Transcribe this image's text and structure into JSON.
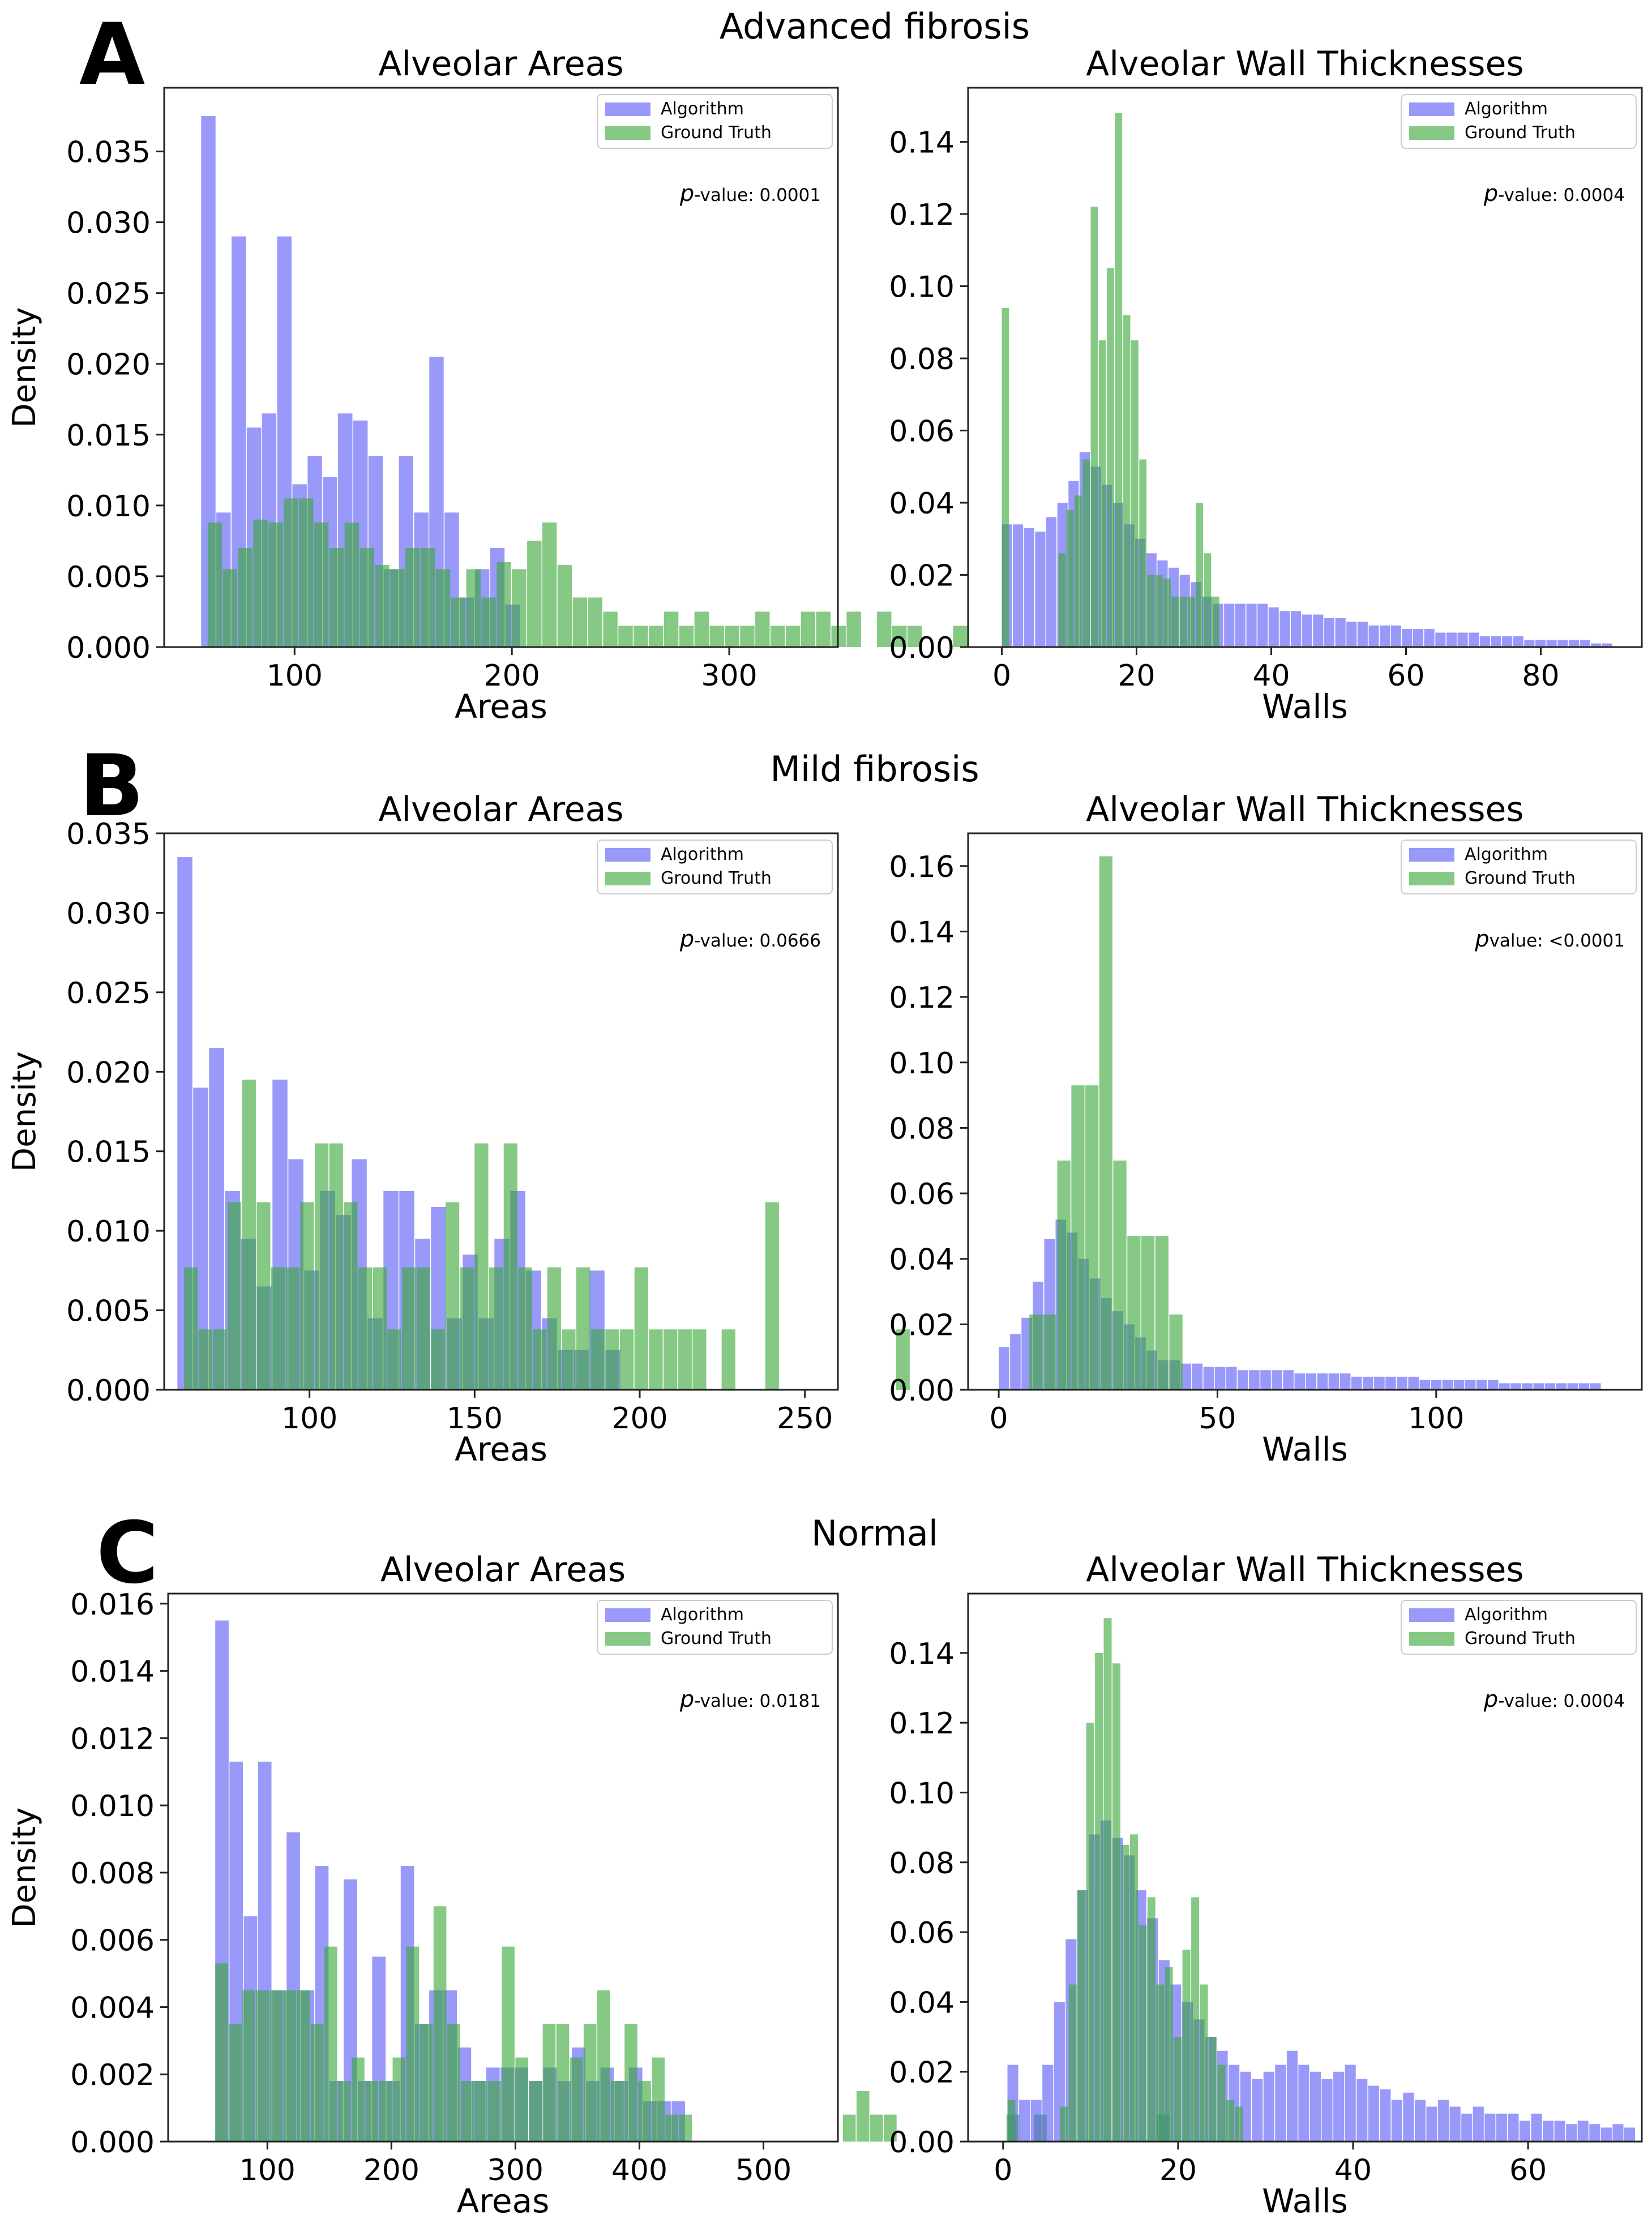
{
  "figure": {
    "panels": [
      {
        "letter": "A",
        "title": "Advanced fibrosis"
      },
      {
        "letter": "B",
        "title": "Mild fibrosis"
      },
      {
        "letter": "C",
        "title": "Normal"
      }
    ]
  },
  "colors": {
    "algorithm": "#5a5af5",
    "ground_truth": "#3aa83a",
    "axis": "#222222"
  },
  "chart_data": [
    {
      "id": "A-areas",
      "type": "histogram",
      "title": "Alveolar Areas",
      "xlabel": "Areas",
      "ylabel": "Density",
      "xlim": [
        40,
        350
      ],
      "ylim": [
        0,
        0.0395
      ],
      "xticks": [
        {
          "v": 100,
          "t": "100"
        },
        {
          "v": 200,
          "t": "200"
        },
        {
          "v": 300,
          "t": "300"
        }
      ],
      "yticks": [
        {
          "v": 0,
          "t": "0.000"
        },
        {
          "v": 0.005,
          "t": "0.005"
        },
        {
          "v": 0.01,
          "t": "0.010"
        },
        {
          "v": 0.015,
          "t": "0.015"
        },
        {
          "v": 0.02,
          "t": "0.020"
        },
        {
          "v": 0.025,
          "t": "0.025"
        },
        {
          "v": 0.03,
          "t": "0.030"
        },
        {
          "v": 0.035,
          "t": "0.035"
        }
      ],
      "legend": [
        "Algorithm",
        "Ground Truth"
      ],
      "annotation": {
        "p": "p",
        "text": "-value: 0.0001"
      },
      "series": [
        {
          "name": "Algorithm",
          "start": 57,
          "width": 7,
          "values": [
            0.0375,
            0.0095,
            0.029,
            0.0155,
            0.0165,
            0.029,
            0.0115,
            0.0135,
            0.012,
            0.0165,
            0.016,
            0.0135,
            0.0055,
            0.0135,
            0.0095,
            0.0205,
            0.0095,
            0.0035,
            0.0055,
            0.007,
            0.003
          ]
        },
        {
          "name": "Ground Truth",
          "start": 60,
          "width": 7,
          "values": [
            0.0088,
            0.0055,
            0.007,
            0.009,
            0.0088,
            0.0105,
            0.0105,
            0.0088,
            0.007,
            0.0088,
            0.007,
            0.0058,
            0.0055,
            0.007,
            0.007,
            0.0055,
            0.0035,
            0.0055,
            0.0035,
            0.006,
            0.0055,
            0.0075,
            0.0088,
            0.0058,
            0.0035,
            0.0035,
            0.0025,
            0.0015,
            0.0015,
            0.0015,
            0.0025,
            0.0015,
            0.0025,
            0.0015,
            0.0015,
            0.0015,
            0.0025,
            0.0015,
            0.0015,
            0.0025,
            0.0025,
            0.0015,
            0.0025,
            0,
            0.0025,
            0.0015,
            0.0015,
            0,
            0,
            0.0015
          ]
        }
      ]
    },
    {
      "id": "A-walls",
      "type": "histogram",
      "title": "Alveolar Wall Thicknesses",
      "xlabel": "Walls",
      "ylabel": "",
      "xlim": [
        -5,
        95
      ],
      "ylim": [
        0,
        0.155
      ],
      "xticks": [
        {
          "v": 0,
          "t": "0"
        },
        {
          "v": 20,
          "t": "20"
        },
        {
          "v": 40,
          "t": "40"
        },
        {
          "v": 60,
          "t": "60"
        },
        {
          "v": 80,
          "t": "80"
        }
      ],
      "yticks": [
        {
          "v": 0,
          "t": "0.00"
        },
        {
          "v": 0.02,
          "t": "0.02"
        },
        {
          "v": 0.04,
          "t": "0.04"
        },
        {
          "v": 0.06,
          "t": "0.06"
        },
        {
          "v": 0.08,
          "t": "0.08"
        },
        {
          "v": 0.1,
          "t": "0.10"
        },
        {
          "v": 0.12,
          "t": "0.12"
        },
        {
          "v": 0.14,
          "t": "0.14"
        }
      ],
      "legend": [
        "Algorithm",
        "Ground Truth"
      ],
      "annotation": {
        "p": "p",
        "text": "-value: 0.0004"
      },
      "series": [
        {
          "name": "Algorithm",
          "start": 0,
          "width": 1.65,
          "values": [
            0.034,
            0.034,
            0.033,
            0.032,
            0.036,
            0.04,
            0.046,
            0.054,
            0.05,
            0.045,
            0.04,
            0.034,
            0.03,
            0.026,
            0.024,
            0.022,
            0.02,
            0.018,
            0.014,
            0.012,
            0.012,
            0.012,
            0.012,
            0.012,
            0.011,
            0.01,
            0.01,
            0.009,
            0.009,
            0.008,
            0.008,
            0.007,
            0.007,
            0.006,
            0.006,
            0.006,
            0.005,
            0.005,
            0.005,
            0.004,
            0.004,
            0.004,
            0.004,
            0.003,
            0.003,
            0.003,
            0.003,
            0.002,
            0.002,
            0.002,
            0.002,
            0.002,
            0.002,
            0.001,
            0.001
          ]
        },
        {
          "name": "Ground Truth",
          "start": 0,
          "width": 1.2,
          "values": [
            0.094,
            0,
            0,
            0,
            0,
            0,
            0,
            0.026,
            0.038,
            0.042,
            0.052,
            0.122,
            0.085,
            0.105,
            0.148,
            0.092,
            0.085,
            0.052,
            0.02,
            0.02,
            0.019,
            0.014,
            0.014,
            0.014,
            0.04,
            0.026,
            0.014
          ]
        }
      ]
    },
    {
      "id": "B-areas",
      "type": "histogram",
      "title": "Alveolar Areas",
      "xlabel": "Areas",
      "ylabel": "Density",
      "xlim": [
        56,
        260
      ],
      "ylim": [
        0,
        0.035
      ],
      "xticks": [
        {
          "v": 100,
          "t": "100"
        },
        {
          "v": 150,
          "t": "150"
        },
        {
          "v": 200,
          "t": "200"
        },
        {
          "v": 250,
          "t": "250"
        }
      ],
      "yticks": [
        {
          "v": 0,
          "t": "0.000"
        },
        {
          "v": 0.005,
          "t": "0.005"
        },
        {
          "v": 0.01,
          "t": "0.010"
        },
        {
          "v": 0.015,
          "t": "0.015"
        },
        {
          "v": 0.02,
          "t": "0.020"
        },
        {
          "v": 0.025,
          "t": "0.025"
        },
        {
          "v": 0.03,
          "t": "0.030"
        },
        {
          "v": 0.035,
          "t": "0.035"
        }
      ],
      "legend": [
        "Algorithm",
        "Ground Truth"
      ],
      "annotation": {
        "p": "p",
        "text": "-value: 0.0666"
      },
      "series": [
        {
          "name": "Algorithm",
          "start": 60,
          "width": 4.8,
          "values": [
            0.0335,
            0.019,
            0.0215,
            0.0125,
            0.0095,
            0.0065,
            0.0195,
            0.0145,
            0.0075,
            0.0125,
            0.011,
            0.0145,
            0.0045,
            0.0125,
            0.0125,
            0.0095,
            0.0115,
            0.0045,
            0.0085,
            0.0045,
            0.0095,
            0.0125,
            0.0075,
            0.0045,
            0.0025,
            0.0025,
            0.0075,
            0.0025
          ]
        },
        {
          "name": "Ground Truth",
          "start": 62,
          "width": 4.4,
          "values": [
            0.0077,
            0.0038,
            0.0038,
            0.0118,
            0.0195,
            0.0118,
            0.0077,
            0.0077,
            0.0118,
            0.0155,
            0.0155,
            0.0118,
            0.0077,
            0.0077,
            0.0038,
            0.0077,
            0.0077,
            0.0038,
            0.0118,
            0.0077,
            0.0155,
            0.0077,
            0.0155,
            0.0077,
            0.0038,
            0.0077,
            0.0038,
            0.0077,
            0.0038,
            0.0038,
            0.0038,
            0.0077,
            0.0038,
            0.0038,
            0.0038,
            0.0038,
            0,
            0.0038,
            0,
            0,
            0.0118,
            0,
            0,
            0,
            0,
            0,
            0,
            0,
            0,
            0.0038
          ]
        }
      ]
    },
    {
      "id": "B-walls",
      "type": "histogram",
      "title": "Alveolar Wall Thicknesses",
      "xlabel": "Walls",
      "ylabel": "",
      "xlim": [
        -7,
        147
      ],
      "ylim": [
        0,
        0.17
      ],
      "xticks": [
        {
          "v": 0,
          "t": "0"
        },
        {
          "v": 50,
          "t": "50"
        },
        {
          "v": 100,
          "t": "100"
        }
      ],
      "yticks": [
        {
          "v": 0,
          "t": "0.00"
        },
        {
          "v": 0.02,
          "t": "0.02"
        },
        {
          "v": 0.04,
          "t": "0.04"
        },
        {
          "v": 0.06,
          "t": "0.06"
        },
        {
          "v": 0.08,
          "t": "0.08"
        },
        {
          "v": 0.1,
          "t": "0.10"
        },
        {
          "v": 0.12,
          "t": "0.12"
        },
        {
          "v": 0.14,
          "t": "0.14"
        },
        {
          "v": 0.16,
          "t": "0.16"
        }
      ],
      "legend": [
        "Algorithm",
        "Ground Truth"
      ],
      "annotation": {
        "p": "p",
        "text": "value:  <0.0001"
      },
      "series": [
        {
          "name": "Algorithm",
          "start": 0,
          "width": 2.6,
          "values": [
            0.013,
            0.017,
            0.022,
            0.033,
            0.046,
            0.052,
            0.048,
            0.04,
            0.034,
            0.028,
            0.024,
            0.02,
            0.016,
            0.012,
            0.009,
            0.009,
            0.008,
            0.008,
            0.007,
            0.007,
            0.007,
            0.006,
            0.006,
            0.006,
            0.006,
            0.006,
            0.005,
            0.005,
            0.005,
            0.005,
            0.005,
            0.004,
            0.004,
            0.004,
            0.004,
            0.004,
            0.004,
            0.003,
            0.003,
            0.003,
            0.003,
            0.003,
            0.003,
            0.003,
            0.002,
            0.002,
            0.002,
            0.002,
            0.002,
            0.002,
            0.002,
            0.002,
            0.002
          ]
        },
        {
          "name": "Ground Truth",
          "start": 7,
          "width": 3.2,
          "values": [
            0.023,
            0.023,
            0.07,
            0.093,
            0.093,
            0.163,
            0.07,
            0.047,
            0.047,
            0.047,
            0.023
          ]
        }
      ]
    },
    {
      "id": "C-areas",
      "type": "histogram",
      "title": "Alveolar Areas",
      "xlabel": "Areas",
      "ylabel": "Density",
      "xlim": [
        20,
        560
      ],
      "ylim": [
        0,
        0.0163
      ],
      "xticks": [
        {
          "v": 100,
          "t": "100"
        },
        {
          "v": 200,
          "t": "200"
        },
        {
          "v": 300,
          "t": "300"
        },
        {
          "v": 400,
          "t": "400"
        },
        {
          "v": 500,
          "t": "500"
        }
      ],
      "yticks": [
        {
          "v": 0,
          "t": "0.000"
        },
        {
          "v": 0.002,
          "t": "0.002"
        },
        {
          "v": 0.004,
          "t": "0.004"
        },
        {
          "v": 0.006,
          "t": "0.006"
        },
        {
          "v": 0.008,
          "t": "0.008"
        },
        {
          "v": 0.01,
          "t": "0.010"
        },
        {
          "v": 0.012,
          "t": "0.012"
        },
        {
          "v": 0.014,
          "t": "0.014"
        },
        {
          "v": 0.016,
          "t": "0.016"
        }
      ],
      "legend": [
        "Algorithm",
        "Ground Truth"
      ],
      "annotation": {
        "p": "p",
        "text": "-value: 0.0181"
      },
      "series": [
        {
          "name": "Algorithm",
          "start": 58,
          "width": 11.5,
          "values": [
            0.0155,
            0.0113,
            0.0067,
            0.0113,
            0.0045,
            0.0092,
            0.0045,
            0.0082,
            0.0018,
            0.0078,
            0.0018,
            0.0055,
            0.0018,
            0.0082,
            0.0035,
            0.0045,
            0.0045,
            0.0028,
            0.0018,
            0.0022,
            0.0022,
            0.0022,
            0.0018,
            0.0022,
            0.0018,
            0.0028,
            0.0018,
            0.0022,
            0.0018,
            0.0022,
            0.0012,
            0.0012,
            0.0012
          ]
        },
        {
          "name": "Ground Truth",
          "start": 58,
          "width": 11,
          "values": [
            0.0053,
            0.0035,
            0.0045,
            0.0045,
            0.0045,
            0.0045,
            0.0045,
            0.0035,
            0.0058,
            0.0018,
            0.0025,
            0.0018,
            0.0018,
            0.0025,
            0.0058,
            0.0035,
            0.007,
            0.0035,
            0.0018,
            0.0018,
            0.0018,
            0.0058,
            0.0025,
            0.0018,
            0.0035,
            0.0035,
            0.0025,
            0.0035,
            0.0045,
            0.0018,
            0.0035,
            0.0018,
            0.0025,
            0.0008,
            0.0008,
            0,
            0,
            0,
            0,
            0,
            0,
            0,
            0,
            0,
            0,
            0,
            0.0008,
            0.0015,
            0.0008,
            0.0008,
            0,
            0,
            0,
            0,
            0,
            0,
            0,
            0,
            0.0008,
            0,
            0.0008,
            0,
            0,
            0,
            0,
            0,
            0,
            0,
            0,
            0.0008
          ]
        }
      ]
    },
    {
      "id": "C-walls",
      "type": "histogram",
      "title": "Alveolar Wall Thicknesses",
      "xlabel": "Walls",
      "ylabel": "",
      "xlim": [
        -4,
        73
      ],
      "ylim": [
        0,
        0.157
      ],
      "xticks": [
        {
          "v": 0,
          "t": "0"
        },
        {
          "v": 20,
          "t": "20"
        },
        {
          "v": 40,
          "t": "40"
        },
        {
          "v": 60,
          "t": "60"
        }
      ],
      "yticks": [
        {
          "v": 0,
          "t": "0.00"
        },
        {
          "v": 0.02,
          "t": "0.02"
        },
        {
          "v": 0.04,
          "t": "0.04"
        },
        {
          "v": 0.06,
          "t": "0.06"
        },
        {
          "v": 0.08,
          "t": "0.08"
        },
        {
          "v": 0.1,
          "t": "0.10"
        },
        {
          "v": 0.12,
          "t": "0.12"
        },
        {
          "v": 0.14,
          "t": "0.14"
        }
      ],
      "legend": [
        "Algorithm",
        "Ground Truth"
      ],
      "annotation": {
        "p": "p",
        "text": "-value: 0.0004"
      },
      "series": [
        {
          "name": "Algorithm",
          "start": 0.5,
          "width": 1.33,
          "values": [
            0.022,
            0.012,
            0.012,
            0.022,
            0.04,
            0.058,
            0.072,
            0.088,
            0.092,
            0.087,
            0.082,
            0.072,
            0.064,
            0.052,
            0.045,
            0.04,
            0.035,
            0.03,
            0.026,
            0.022,
            0.02,
            0.018,
            0.02,
            0.022,
            0.026,
            0.022,
            0.02,
            0.018,
            0.02,
            0.022,
            0.018,
            0.016,
            0.015,
            0.012,
            0.014,
            0.012,
            0.01,
            0.012,
            0.01,
            0.008,
            0.01,
            0.008,
            0.008,
            0.008,
            0.006,
            0.008,
            0.006,
            0.006,
            0.005,
            0.006,
            0.005,
            0.004,
            0.005,
            0.004
          ]
        },
        {
          "name": "Ground Truth",
          "start": 0.5,
          "width": 1,
          "values": [
            0.012,
            0,
            0,
            0,
            0,
            0,
            0.01,
            0.045,
            0.072,
            0.12,
            0.14,
            0.15,
            0.137,
            0.085,
            0.088,
            0.062,
            0.07,
            0.045,
            0.05,
            0.03,
            0.055,
            0.07,
            0.045,
            0.03,
            0.022,
            0.012,
            0.01
          ]
        }
      ]
    }
  ]
}
